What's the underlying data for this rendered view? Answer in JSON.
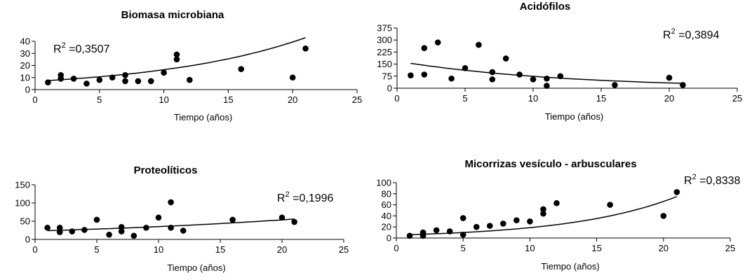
{
  "chart_data": [
    {
      "type": "scatter",
      "title": "Biomasa microbiana",
      "xlabel": "Tiempo (años)",
      "ylabel": "",
      "xlim": [
        0,
        25
      ],
      "ylim": [
        0,
        40
      ],
      "xticks": [
        0,
        5,
        10,
        15,
        20,
        25
      ],
      "yticks": [
        0,
        10,
        20,
        30,
        40
      ],
      "r2_prefix": "R",
      "r2_sup": "2",
      "r2_value": " =0,3507",
      "trend": "exponential",
      "trend_x": [
        1,
        21
      ],
      "trend_y": [
        7.5,
        43
      ],
      "points": {
        "x": [
          1,
          2,
          2,
          3,
          4,
          5,
          6,
          7,
          7,
          8,
          9,
          10,
          11,
          11,
          12,
          16,
          20,
          21
        ],
        "y": [
          6,
          12,
          9,
          9,
          5,
          8,
          10,
          12,
          7,
          7,
          7,
          14,
          29,
          25,
          8,
          17,
          10,
          34
        ]
      }
    },
    {
      "type": "scatter",
      "title": "Acidófilos",
      "xlabel": "Tiempo (años)",
      "ylabel": "",
      "xlim": [
        0,
        25
      ],
      "ylim": [
        0,
        375
      ],
      "xticks": [
        0,
        5,
        10,
        15,
        20,
        25
      ],
      "yticks": [
        0,
        75,
        150,
        225,
        300,
        375
      ],
      "r2_prefix": "R",
      "r2_sup": "2",
      "r2_value": " =0,3894",
      "trend": "exponential",
      "trend_x": [
        1,
        21
      ],
      "trend_y": [
        155,
        30
      ],
      "points": {
        "x": [
          1,
          2,
          2,
          3,
          4,
          5,
          6,
          7,
          7,
          8,
          9,
          10,
          11,
          11,
          12,
          16,
          20,
          21
        ],
        "y": [
          80,
          85,
          250,
          285,
          60,
          125,
          270,
          100,
          55,
          185,
          85,
          55,
          60,
          15,
          75,
          20,
          65,
          20
        ]
      }
    },
    {
      "type": "scatter",
      "title": "Proteolíticos",
      "xlabel": "Tiempo (años)",
      "ylabel": "",
      "xlim": [
        0,
        25
      ],
      "ylim": [
        0,
        150
      ],
      "xticks": [
        0,
        5,
        10,
        15,
        20,
        25
      ],
      "yticks": [
        0,
        50,
        100,
        150
      ],
      "r2_prefix": "R",
      "r2_sup": "2",
      "r2_value": " =0,1996",
      "trend": "exponential",
      "trend_x": [
        1,
        21
      ],
      "trend_y": [
        24,
        56
      ],
      "points": {
        "x": [
          1,
          2,
          2,
          3,
          4,
          5,
          6,
          7,
          7,
          8,
          9,
          10,
          11,
          11,
          12,
          16,
          20,
          21
        ],
        "y": [
          32,
          32,
          20,
          22,
          26,
          54,
          13,
          34,
          22,
          10,
          32,
          60,
          102,
          32,
          24,
          54,
          60,
          48
        ]
      }
    },
    {
      "type": "scatter",
      "title": "Micorrizas vesículo - arbusculares",
      "xlabel": "Tiempo (años)",
      "ylabel": "",
      "xlim": [
        0,
        25
      ],
      "ylim": [
        0,
        100
      ],
      "xticks": [
        0,
        5,
        10,
        15,
        20,
        25
      ],
      "yticks": [
        0,
        20,
        40,
        60,
        80,
        100
      ],
      "r2_prefix": "R",
      "r2_sup": "2",
      "r2_value": " =0,8338",
      "trend": "exponential",
      "trend_x": [
        1,
        21
      ],
      "trend_y": [
        6,
        75
      ],
      "points": {
        "x": [
          1,
          2,
          2,
          3,
          4,
          5,
          5,
          6,
          7,
          8,
          9,
          10,
          11,
          11,
          12,
          16,
          20,
          21
        ],
        "y": [
          4,
          10,
          4,
          14,
          12,
          36,
          6,
          20,
          22,
          26,
          32,
          30,
          52,
          44,
          63,
          60,
          40,
          83
        ]
      }
    }
  ]
}
